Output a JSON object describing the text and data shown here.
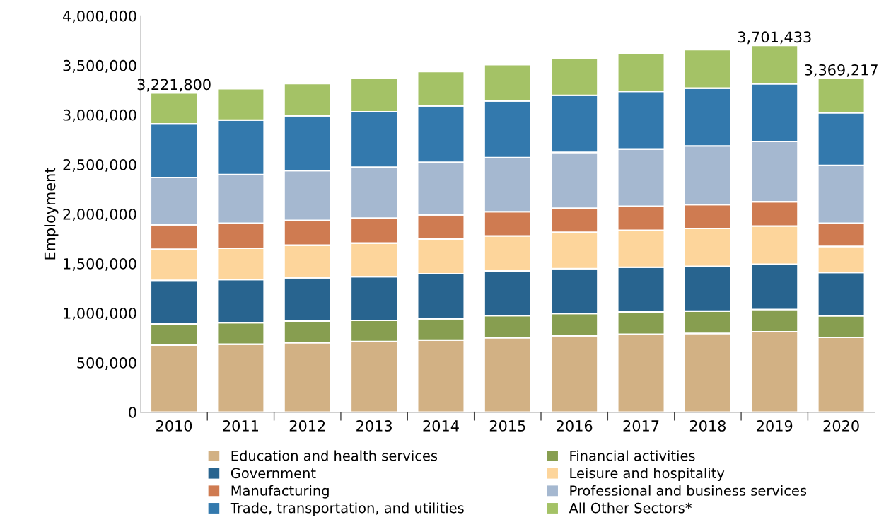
{
  "chart_data": {
    "type": "bar",
    "stacked": true,
    "ylabel": "Employment",
    "categories": [
      "2010",
      "2011",
      "2012",
      "2013",
      "2014",
      "2015",
      "2016",
      "2017",
      "2018",
      "2019",
      "2020"
    ],
    "series": [
      {
        "name": "Education and health services",
        "color": "#d2b184",
        "values": [
          675000,
          685000,
          700000,
          712000,
          727000,
          751000,
          771000,
          786000,
          794000,
          811000,
          754000
        ]
      },
      {
        "name": "Financial activities",
        "color": "#879e50",
        "values": [
          215000,
          218000,
          218000,
          213000,
          215000,
          222000,
          225000,
          225000,
          225000,
          225000,
          218000
        ]
      },
      {
        "name": "Government",
        "color": "#28648f",
        "values": [
          440000,
          435000,
          438000,
          442000,
          455000,
          452000,
          452000,
          452000,
          452000,
          457000,
          438000
        ]
      },
      {
        "name": "Leisure and hospitality",
        "color": "#fdd59b",
        "values": [
          314000,
          316000,
          329000,
          339000,
          349000,
          353000,
          368000,
          373000,
          383000,
          386000,
          262000
        ]
      },
      {
        "name": "Manufacturing",
        "color": "#cf7b51",
        "values": [
          247000,
          252000,
          250000,
          252000,
          245000,
          245000,
          242000,
          242000,
          240000,
          245000,
          235000
        ]
      },
      {
        "name": "Professional and business services",
        "color": "#a5b8d0",
        "values": [
          477000,
          492000,
          502000,
          514000,
          531000,
          546000,
          564000,
          578000,
          593000,
          608000,
          583000
        ]
      },
      {
        "name": "Trade, transportation, and utilities",
        "color": "#3379ad",
        "values": [
          541000,
          549000,
          554000,
          559000,
          569000,
          571000,
          576000,
          581000,
          583000,
          581000,
          531000
        ]
      },
      {
        "name": "All Other Sectors*",
        "color": "#a4c266",
        "values": [
          312800,
          316000,
          324000,
          339000,
          346000,
          366000,
          376000,
          381000,
          388000,
          388433,
          348217
        ]
      }
    ],
    "totals": [
      "3,221,800",
      null,
      null,
      null,
      null,
      null,
      null,
      null,
      null,
      "3,701,433",
      "3,369,217"
    ],
    "ylim": [
      0,
      4000000
    ],
    "yticks": [
      0,
      {
        "value": 500000,
        "label": "500,000"
      },
      {
        "value": 1000000,
        "label": "1,000,000"
      },
      {
        "value": 1500000,
        "label": "1,500,000"
      },
      {
        "value": 2000000,
        "label": "2,000,000"
      },
      {
        "value": 2500000,
        "label": "2,500,000"
      },
      {
        "value": 3000000,
        "label": "3,000,000"
      },
      {
        "value": 3500000,
        "label": "3,500,000"
      },
      {
        "value": 4000000,
        "label": "4,000,000"
      }
    ],
    "legend": "bottom",
    "grid": false
  }
}
